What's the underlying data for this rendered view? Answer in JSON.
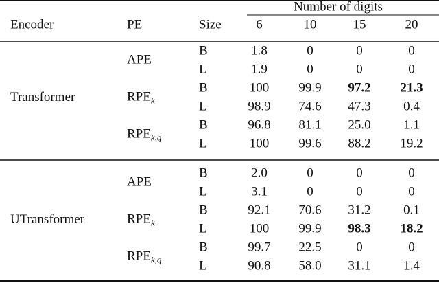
{
  "table": {
    "span_header": "Number of digits",
    "columns": [
      "Encoder",
      "PE",
      "Size",
      "6",
      "10",
      "15",
      "20"
    ],
    "groups": [
      {
        "encoder": "Transformer",
        "pes": [
          {
            "label": "APE",
            "rows": [
              {
                "size": "B",
                "values": [
                  "1.8",
                  "0",
                  "0",
                  "0"
                ]
              },
              {
                "size": "L",
                "values": [
                  "1.9",
                  "0",
                  "0",
                  "0"
                ]
              }
            ]
          },
          {
            "label": "RPE",
            "subscript": "k",
            "rows": [
              {
                "size": "B",
                "values": [
                  "100",
                  "99.9",
                  {
                    "text": "97.2",
                    "bold": true
                  },
                  {
                    "text": "21.3",
                    "bold": true
                  }
                ]
              },
              {
                "size": "L",
                "values": [
                  "98.9",
                  "74.6",
                  "47.3",
                  "0.4"
                ]
              }
            ]
          },
          {
            "label": "RPE",
            "subscript": "k,q",
            "rows": [
              {
                "size": "B",
                "values": [
                  "96.8",
                  "81.1",
                  "25.0",
                  "1.1"
                ]
              },
              {
                "size": "L",
                "values": [
                  "100",
                  "99.6",
                  "88.2",
                  "19.2"
                ]
              }
            ]
          }
        ]
      },
      {
        "encoder": "UTransformer",
        "pes": [
          {
            "label": "APE",
            "rows": [
              {
                "size": "B",
                "values": [
                  "2.0",
                  "0",
                  "0",
                  "0"
                ]
              },
              {
                "size": "L",
                "values": [
                  "3.1",
                  "0",
                  "0",
                  "0"
                ]
              }
            ]
          },
          {
            "label": "RPE",
            "subscript": "k",
            "rows": [
              {
                "size": "B",
                "values": [
                  "92.1",
                  "70.6",
                  "31.2",
                  "0.1"
                ]
              },
              {
                "size": "L",
                "values": [
                  "100",
                  "99.9",
                  {
                    "text": "98.3",
                    "bold": true
                  },
                  {
                    "text": "18.2",
                    "bold": true
                  }
                ]
              }
            ]
          },
          {
            "label": "RPE",
            "subscript": "k,q",
            "rows": [
              {
                "size": "B",
                "values": [
                  "99.7",
                  "22.5",
                  "0",
                  "0"
                ]
              },
              {
                "size": "L",
                "values": [
                  "90.8",
                  "58.0",
                  "31.1",
                  "1.4"
                ]
              }
            ]
          }
        ]
      }
    ]
  }
}
